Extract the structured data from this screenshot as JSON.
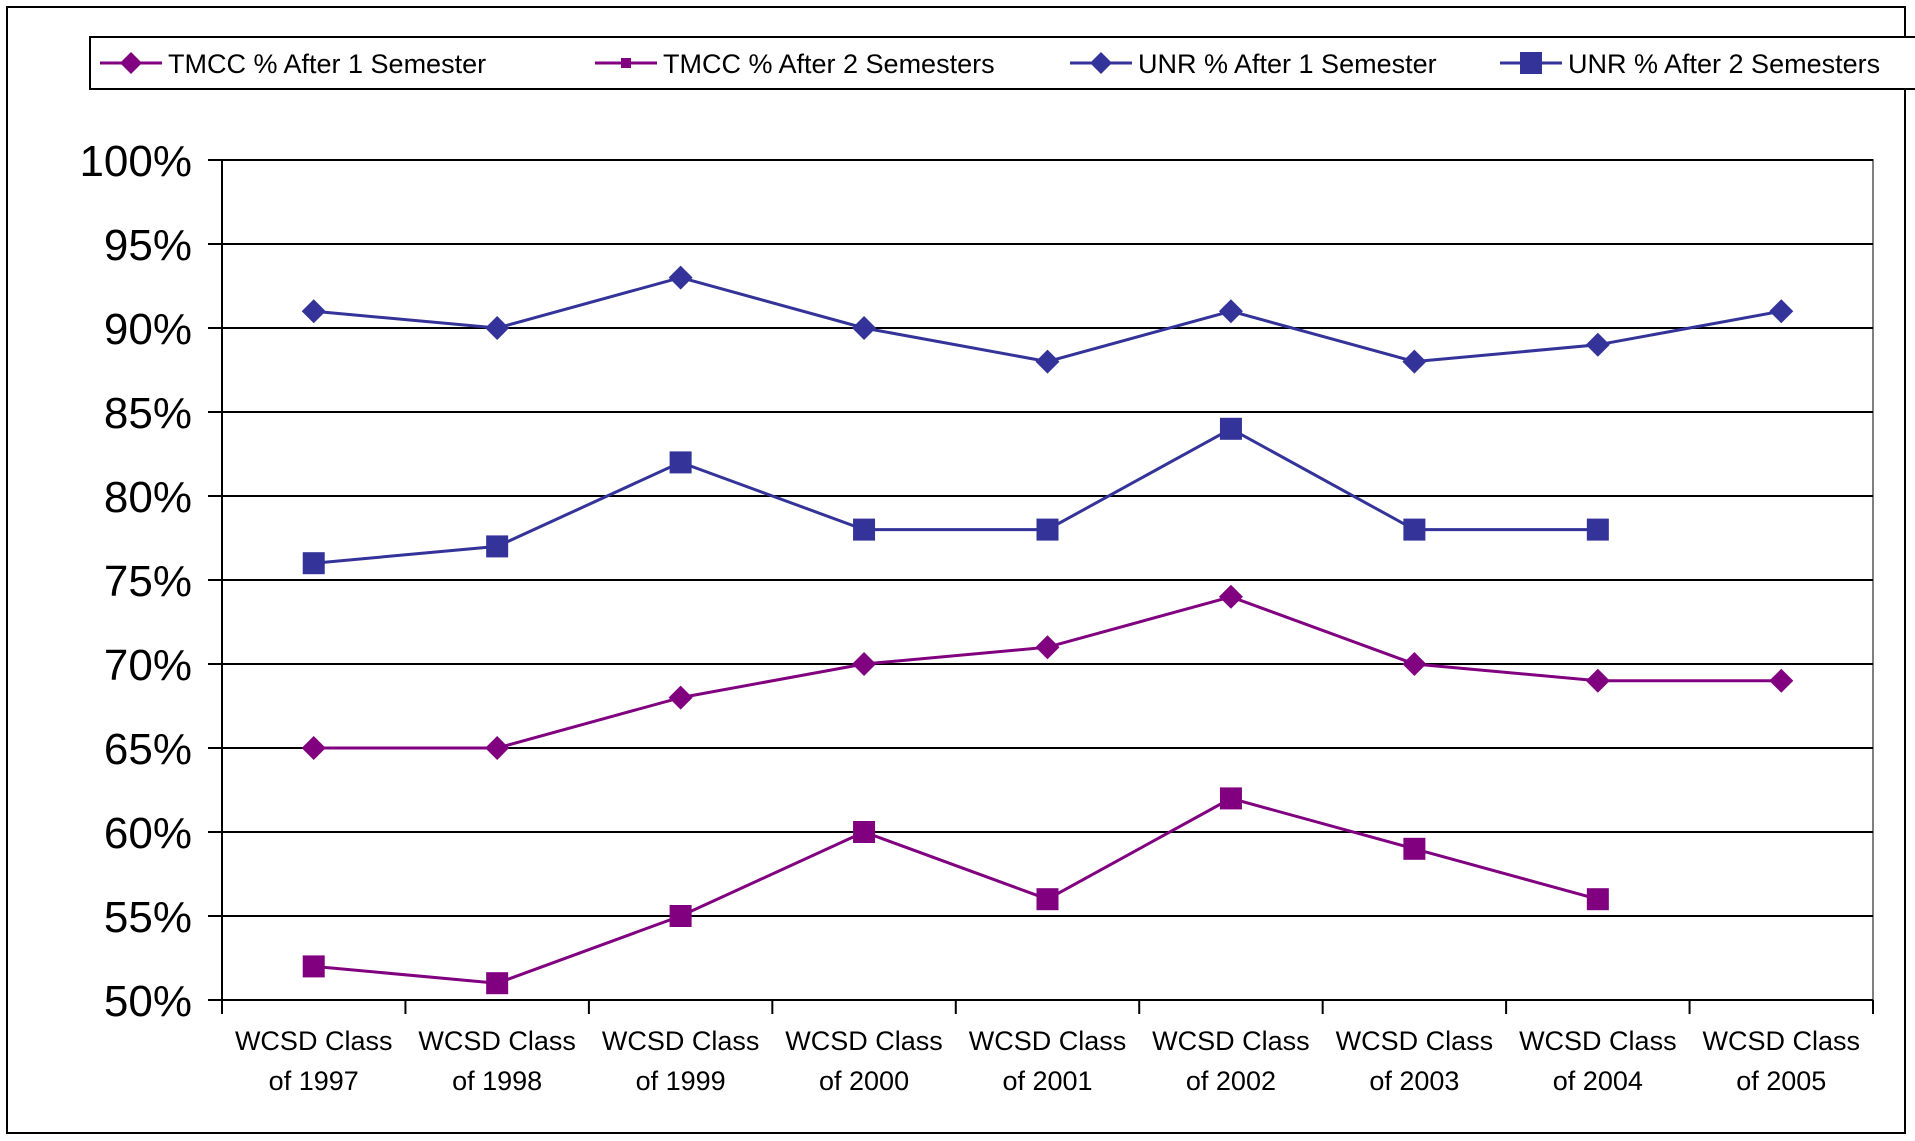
{
  "chart_data": {
    "type": "line",
    "title": "",
    "xlabel": "",
    "ylabel": "",
    "categories": [
      [
        "WCSD Class",
        "of 1997"
      ],
      [
        "WCSD Class",
        "of 1998"
      ],
      [
        "WCSD Class",
        "of 1999"
      ],
      [
        "WCSD Class",
        "of 2000"
      ],
      [
        "WCSD Class",
        "of 2001"
      ],
      [
        "WCSD Class",
        "of 2002"
      ],
      [
        "WCSD Class",
        "of 2003"
      ],
      [
        "WCSD Class",
        "of 2004"
      ],
      [
        "WCSD Class",
        "of 2005"
      ]
    ],
    "ylim": [
      50,
      100
    ],
    "yticks": [
      50,
      55,
      60,
      65,
      70,
      75,
      80,
      85,
      90,
      95,
      100
    ],
    "ytick_format": "%",
    "grid": true,
    "legend_position": "top",
    "series": [
      {
        "name": "TMCC % After 1 Semester",
        "color": "#800080",
        "marker": "diamond",
        "values": [
          65,
          65,
          68,
          70,
          71,
          74,
          70,
          69,
          69
        ]
      },
      {
        "name": "TMCC % After 2 Semesters",
        "color": "#800080",
        "marker": "square",
        "values": [
          52,
          51,
          55,
          60,
          56,
          62,
          59,
          56,
          null
        ]
      },
      {
        "name": "UNR % After 1 Semester",
        "color": "#333399",
        "marker": "diamond",
        "values": [
          91,
          90,
          93,
          90,
          88,
          91,
          88,
          89,
          91
        ]
      },
      {
        "name": "UNR % After 2 Semesters",
        "color": "#333399",
        "marker": "square",
        "values": [
          76,
          77,
          82,
          78,
          78,
          84,
          78,
          78,
          null
        ]
      }
    ]
  }
}
